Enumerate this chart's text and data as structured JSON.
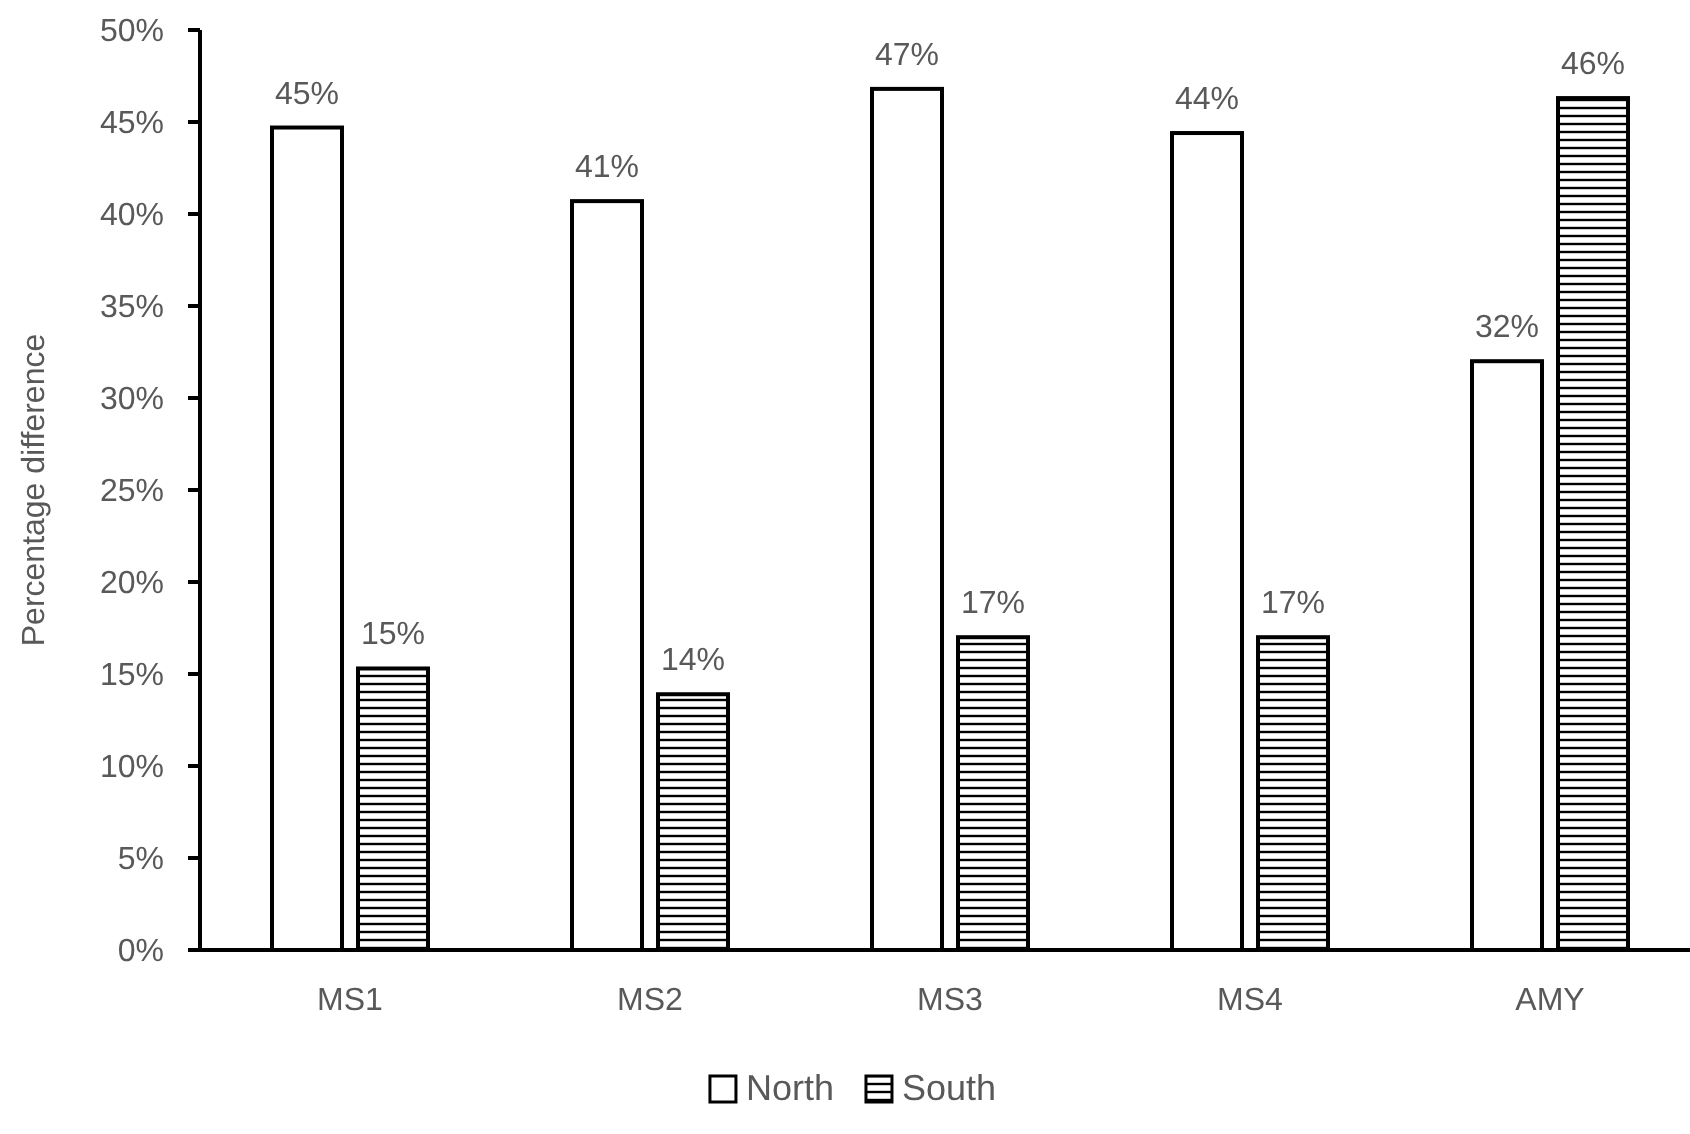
{
  "chart_data": {
    "type": "bar",
    "ylabel": "Percentage difference",
    "categories": [
      "MS1",
      "MS2",
      "MS3",
      "MS4",
      "AMY"
    ],
    "series": [
      {
        "name": "North",
        "color": "#ffffff",
        "values": [
          44.7,
          40.7,
          46.8,
          44.4,
          32.0
        ],
        "value_labels": [
          "45%",
          "41%",
          "47%",
          "44%",
          "32%"
        ]
      },
      {
        "name": "South",
        "color": "#000000",
        "values": [
          15.3,
          13.9,
          17.0,
          17.0,
          46.3
        ],
        "value_labels": [
          "15%",
          "14%",
          "17%",
          "17%",
          "46%"
        ]
      }
    ],
    "ylim": [
      0,
      50
    ],
    "yticks": [
      {
        "value": 0,
        "label": "0%"
      },
      {
        "value": 5,
        "label": "5%"
      },
      {
        "value": 10,
        "label": "10%"
      },
      {
        "value": 15,
        "label": "15%"
      },
      {
        "value": 20,
        "label": "20%"
      },
      {
        "value": 25,
        "label": "25%"
      },
      {
        "value": 30,
        "label": "30%"
      },
      {
        "value": 35,
        "label": "35%"
      },
      {
        "value": 40,
        "label": "40%"
      },
      {
        "value": 45,
        "label": "45%"
      },
      {
        "value": 50,
        "label": "50%"
      }
    ],
    "legend": "bottom"
  }
}
